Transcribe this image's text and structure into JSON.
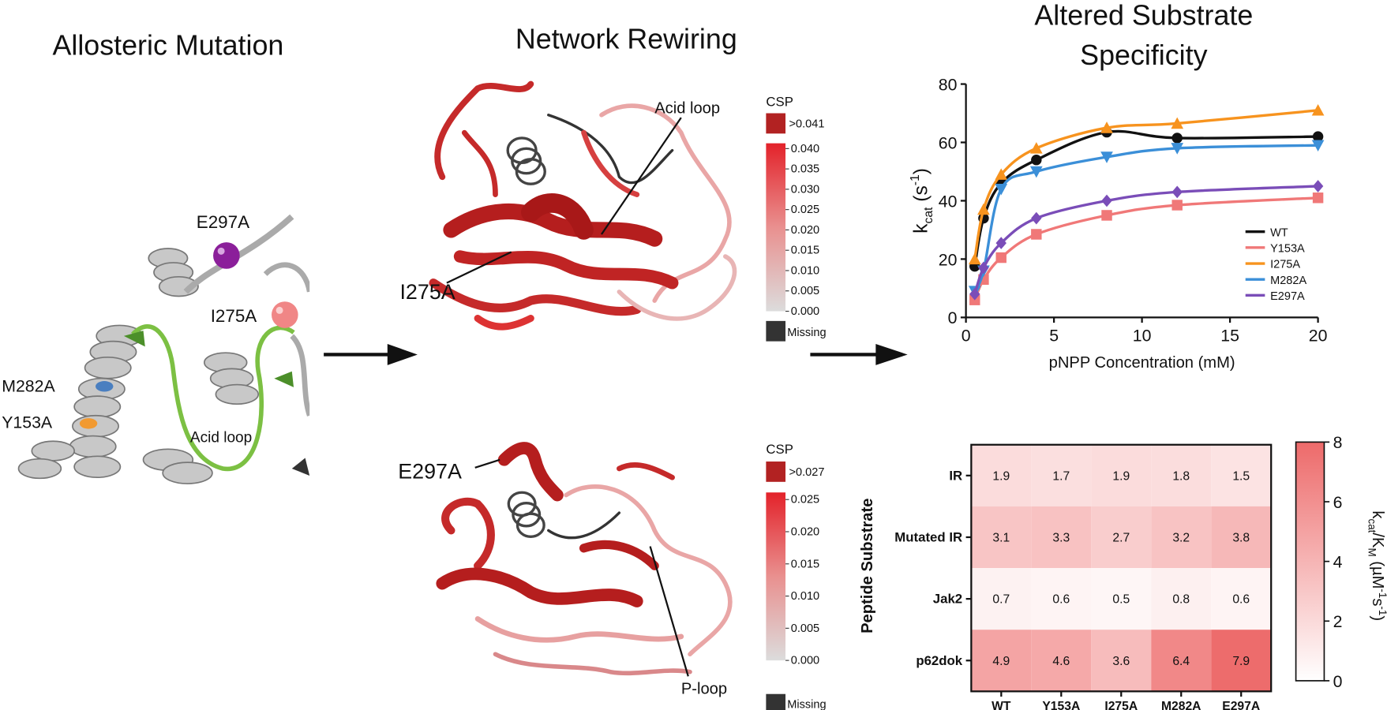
{
  "figure": {
    "panel_titles": {
      "mutation": "Allosteric Mutation",
      "network": "Network Rewiring",
      "specificity": [
        "Altered Substrate",
        "Specificity"
      ]
    },
    "mutation_labels": {
      "e297a": "E297A",
      "i275a": "I275A",
      "m282a": "M282A",
      "y153a": "Y153A",
      "acid_loop": "Acid loop"
    },
    "network_top": {
      "labels": {
        "acid_loop": "Acid loop",
        "mutation": "I275A"
      },
      "legend": {
        "title": "CSP",
        "over": ">0.041",
        "ticks": [
          "0.040",
          "0.035",
          "0.030",
          "0.025",
          "0.020",
          "0.015",
          "0.010",
          "0.005",
          "0.000"
        ],
        "missing": "Missing"
      }
    },
    "network_bottom": {
      "labels": {
        "mutation": "E297A",
        "p_loop": "P-loop"
      },
      "legend": {
        "title": "CSP",
        "over": ">0.027",
        "ticks": [
          "0.025",
          "0.020",
          "0.015",
          "0.010",
          "0.005",
          "0.000"
        ],
        "missing": "Missing"
      }
    }
  },
  "chart_data": [
    {
      "type": "line",
      "x_label": "pNPP Concentration (mM)",
      "y_label_parts": [
        "k",
        "cat",
        " (s",
        "-1",
        ")"
      ],
      "xlim": [
        0,
        20
      ],
      "ylim": [
        0,
        80
      ],
      "xticks": [
        0,
        5,
        10,
        15,
        20
      ],
      "yticks": [
        0,
        20,
        40,
        60,
        80
      ],
      "legend": "lower right",
      "x": [
        0.5,
        1,
        2,
        4,
        8,
        12,
        20
      ],
      "series": [
        {
          "name": "WT",
          "color": "#111111",
          "marker": "circle",
          "values": [
            17.5,
            34,
            46,
            54,
            63.5,
            61.5,
            62
          ]
        },
        {
          "name": "Y153A",
          "color": "#f07878",
          "marker": "square",
          "values": [
            6,
            13,
            20.5,
            28.5,
            35,
            38.5,
            41
          ]
        },
        {
          "name": "I275A",
          "color": "#f7931e",
          "marker": "triangle",
          "values": [
            20,
            37,
            49,
            58,
            65,
            66.5,
            71
          ]
        },
        {
          "name": "M282A",
          "color": "#3b8fd8",
          "marker": "triangle-down",
          "values": [
            9,
            16,
            44,
            50,
            55,
            58,
            59
          ]
        },
        {
          "name": "E297A",
          "color": "#7a4db8",
          "marker": "diamond",
          "values": [
            8,
            17,
            25.5,
            34,
            40,
            43,
            45
          ]
        }
      ]
    },
    {
      "type": "heatmap",
      "y_label": "Peptide Substrate",
      "rows": [
        "IR",
        "Mutated IR",
        "Jak2",
        "p62dok"
      ],
      "columns": [
        "WT",
        "Y153A",
        "I275A",
        "M282A",
        "E297A"
      ],
      "values": [
        [
          1.9,
          1.7,
          1.9,
          1.8,
          1.5
        ],
        [
          3.1,
          3.3,
          2.7,
          3.2,
          3.8
        ],
        [
          0.7,
          0.6,
          0.5,
          0.8,
          0.6
        ],
        [
          4.9,
          4.6,
          3.6,
          6.4,
          7.9
        ]
      ],
      "clim": [
        0,
        8
      ],
      "cticks": [
        0,
        2,
        4,
        6,
        8
      ],
      "color_min": "#ffffff",
      "color_max": "#ed6a6a",
      "colorbar_label_parts": [
        "k",
        "cat",
        "/K",
        "M",
        " (µM",
        "-1",
        "s",
        "-1",
        ")"
      ]
    }
  ]
}
